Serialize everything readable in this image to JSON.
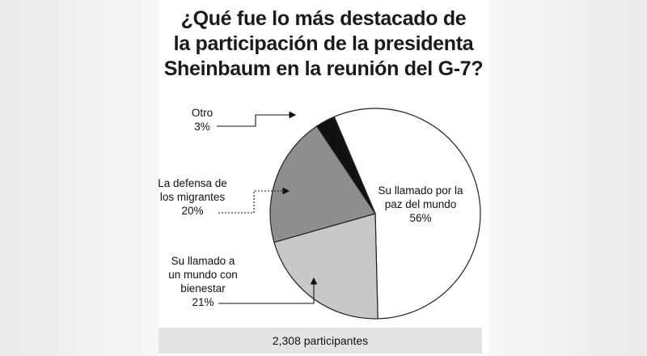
{
  "title_lines": [
    "¿Qué fue lo más destacado de",
    "la participación de la presidenta",
    "Sheinbaum en la reunión del G-7?"
  ],
  "footer": "2,308 participantes",
  "colors": {
    "peace": "#ffffff",
    "wellbeing": "#c8c8c8",
    "migrants": "#8e8e8e",
    "other": "#111111"
  },
  "chart_data": {
    "type": "pie",
    "title": "¿Qué fue lo más destacado de la participación de la presidenta Sheinbaum en la reunión del G-7?",
    "slices": [
      {
        "label": [
          "Su llamado por la",
          "paz del mundo"
        ],
        "value": 56,
        "pct_text": "56%",
        "color": "#ffffff"
      },
      {
        "label": [
          "Su llamado a",
          "un mundo con",
          "bienestar"
        ],
        "value": 21,
        "pct_text": "21%",
        "color": "#c8c8c8"
      },
      {
        "label": [
          "La defensa de",
          "los migrantes"
        ],
        "value": 20,
        "pct_text": "20%",
        "color": "#8e8e8e"
      },
      {
        "label": [
          "Otro"
        ],
        "value": 3,
        "pct_text": "3%",
        "color": "#111111"
      }
    ]
  }
}
